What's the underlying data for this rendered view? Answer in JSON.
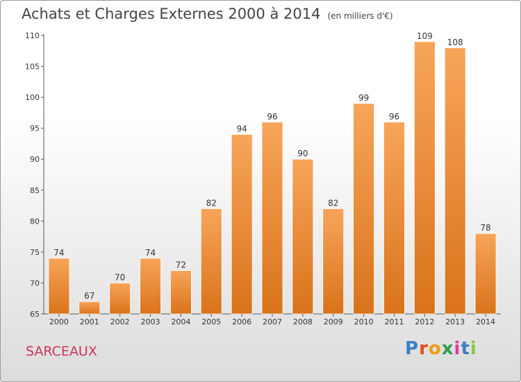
{
  "header": {
    "title": "Achats et Charges Externes 2000 à 2014",
    "subtitle": "(en milliers d'€)"
  },
  "footer": {
    "city": "SARCEAUX",
    "logo_letters": [
      "P",
      "r",
      "o",
      "x",
      "i",
      "t",
      "i"
    ]
  },
  "colors": {
    "bar_top": "#f7a55a",
    "bar_bottom": "#d9731a",
    "city": "#c8365a",
    "title": "#444444"
  },
  "chart_data": {
    "type": "bar",
    "title": "Achats et Charges Externes 2000 à 2014",
    "subtitle": "(en milliers d'€)",
    "xlabel": "",
    "ylabel": "",
    "categories": [
      "2000",
      "2001",
      "2002",
      "2003",
      "2004",
      "2005",
      "2006",
      "2007",
      "2008",
      "2009",
      "2010",
      "2011",
      "2012",
      "2013",
      "2014"
    ],
    "values": [
      74,
      67,
      70,
      74,
      72,
      82,
      94,
      96,
      90,
      82,
      99,
      96,
      109,
      108,
      78
    ],
    "ylim": [
      65,
      110
    ],
    "yticks": [
      65,
      70,
      75,
      80,
      85,
      90,
      95,
      100,
      105,
      110
    ],
    "grid": false,
    "legend": "none"
  }
}
